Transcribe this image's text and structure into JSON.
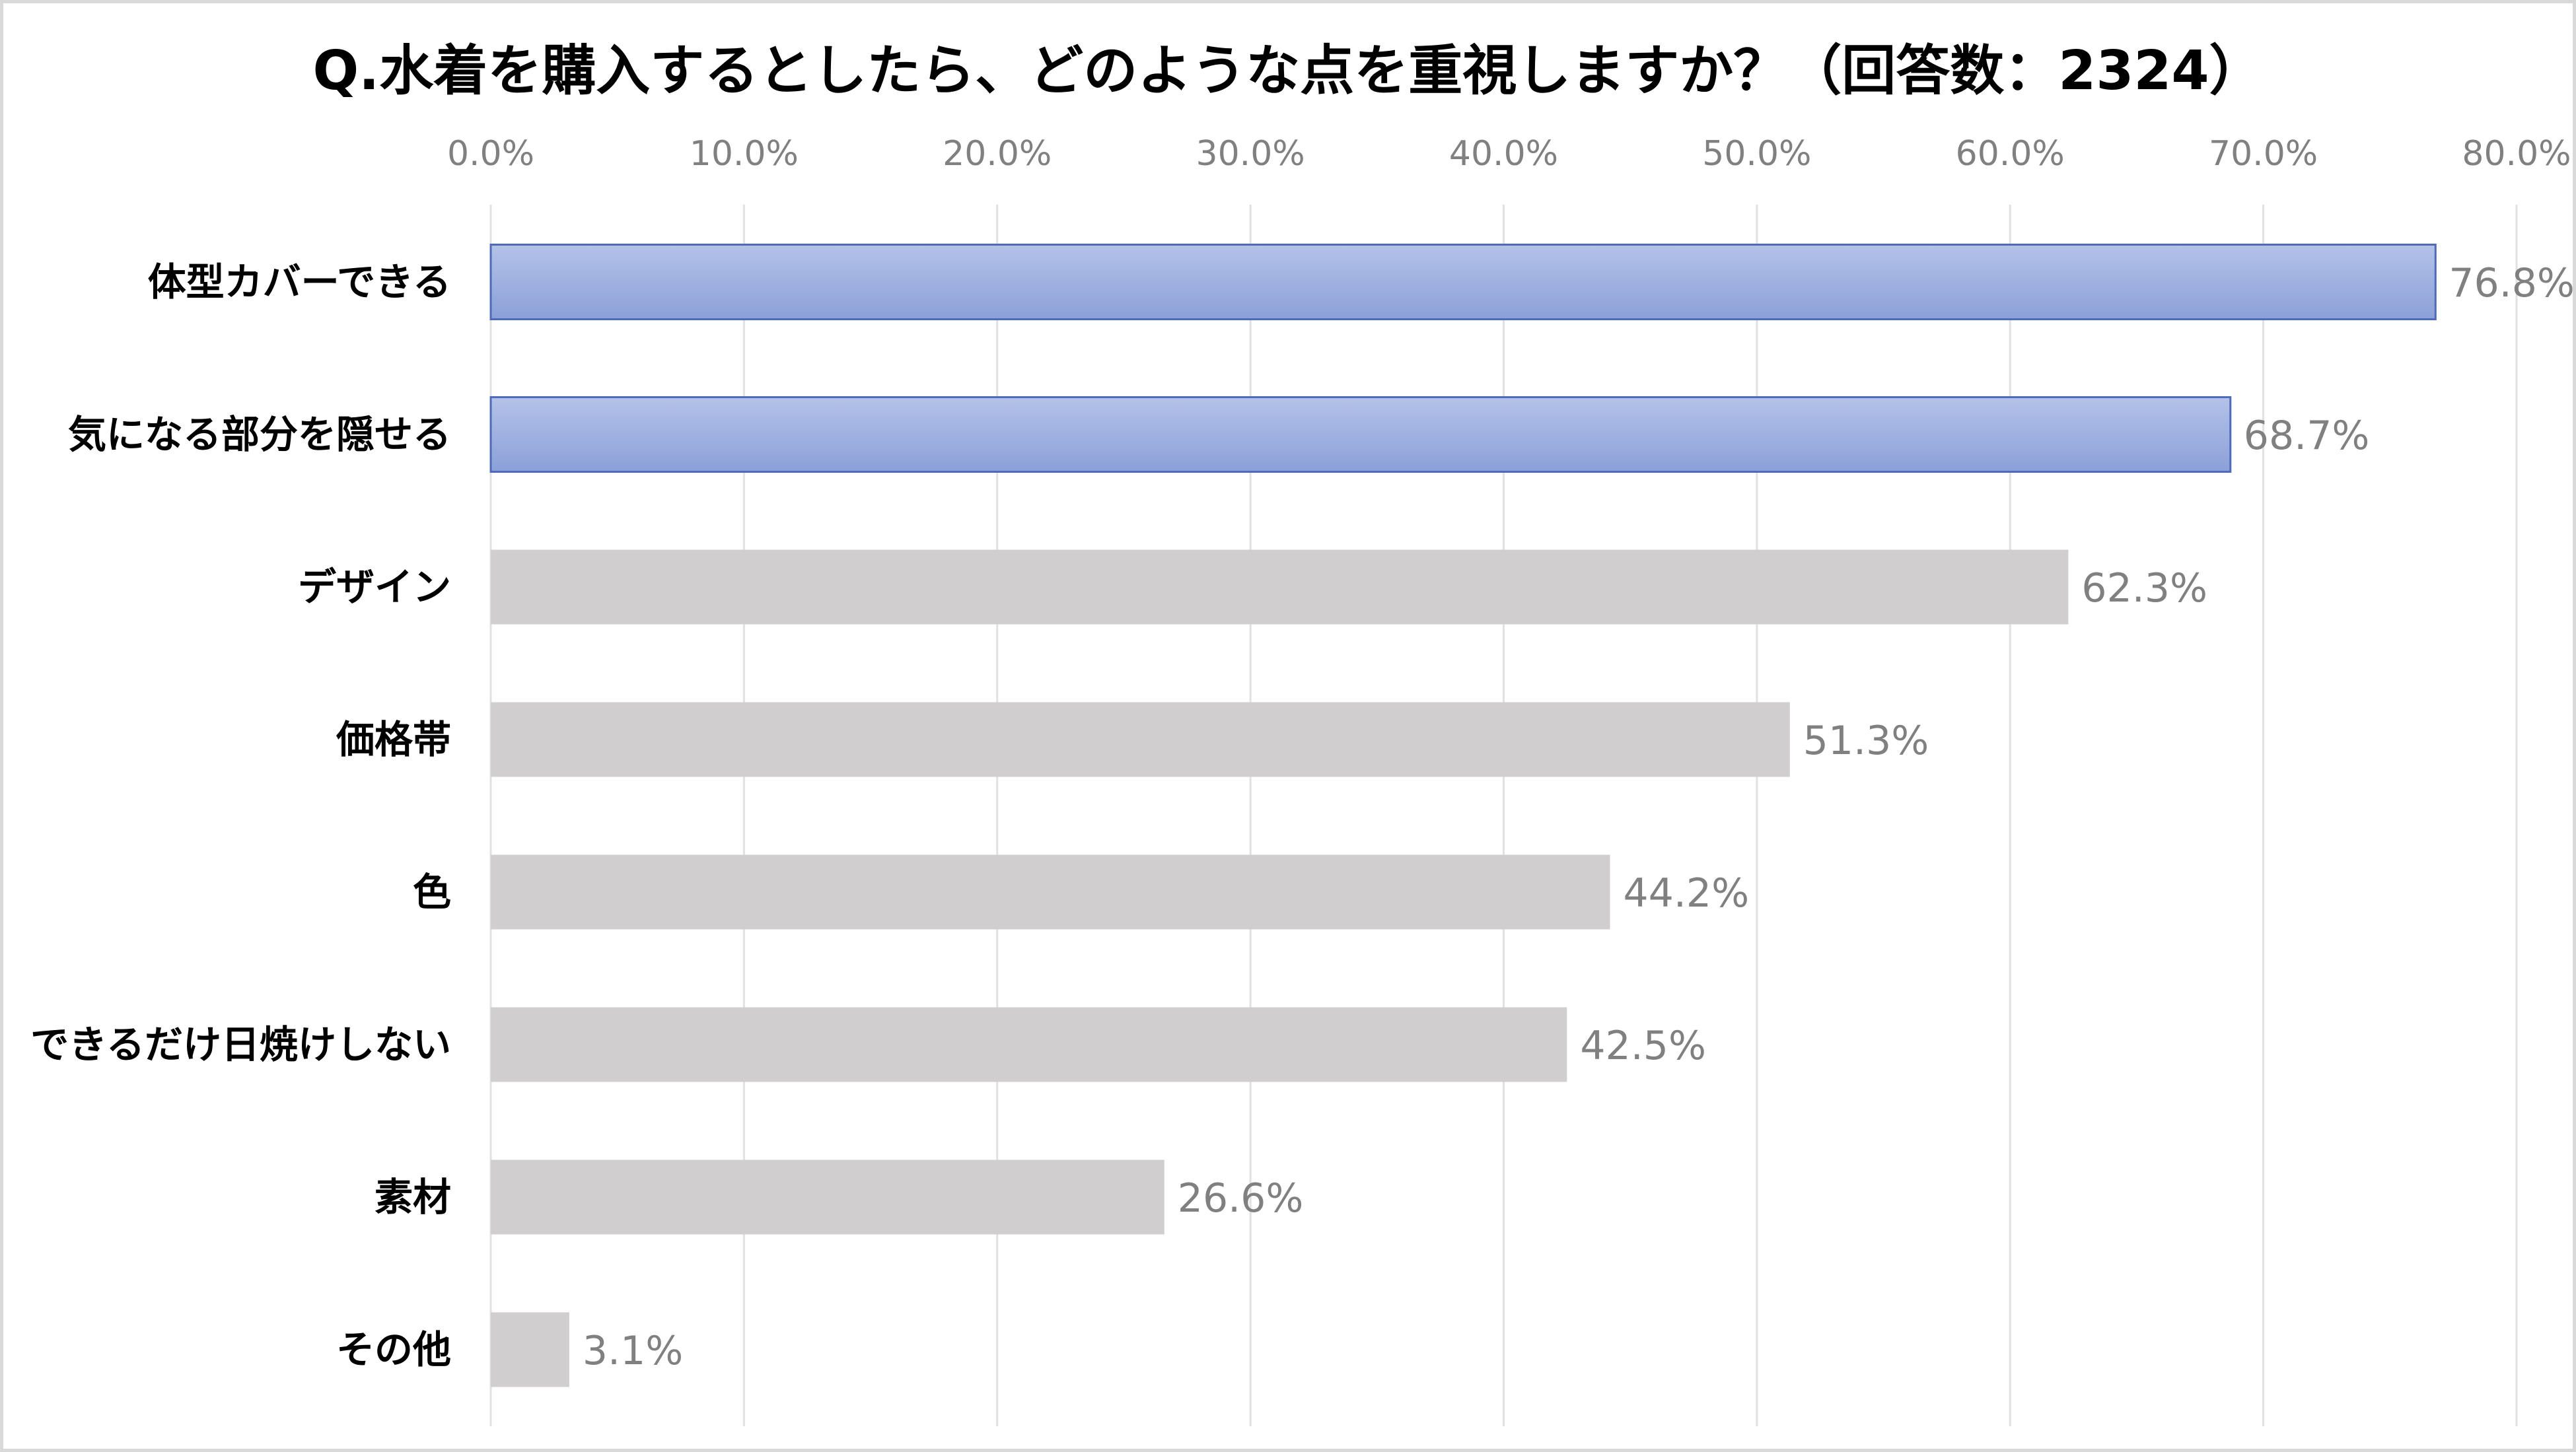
{
  "chart_data": {
    "type": "bar",
    "orientation": "horizontal",
    "title": "Q.水着を購入するとしたら、どのような点を重視しますか？（回答数：2324）",
    "categories": [
      "体型カバーできる",
      "気になる部分を隠せる",
      "デザイン",
      "価格帯",
      "色",
      "できるだけ日焼けしない",
      "素材",
      "その他"
    ],
    "values": [
      76.8,
      68.7,
      62.3,
      51.3,
      44.2,
      42.5,
      26.6,
      3.1
    ],
    "value_labels": [
      "76.8%",
      "68.7%",
      "62.3%",
      "51.3%",
      "44.2%",
      "42.5%",
      "26.6%",
      "3.1%"
    ],
    "highlighted": [
      true,
      true,
      false,
      false,
      false,
      false,
      false,
      false
    ],
    "xlim": [
      0,
      80
    ],
    "x_ticks": [
      0,
      10,
      20,
      30,
      40,
      50,
      60,
      70,
      80
    ],
    "x_tick_labels": [
      "0.0%",
      "10.0%",
      "20.0%",
      "30.0%",
      "40.0%",
      "50.0%",
      "60.0%",
      "70.0%",
      "80.0%"
    ],
    "x_axis_position": "top",
    "grid": true,
    "legend": "none",
    "colors": {
      "highlight_top": "#b4c2e8",
      "highlight_bottom": "#8ba0d9",
      "highlight_border": "#4f6ab8",
      "normal": "#d0cece",
      "grid": "#e1e1e1",
      "axis_text": "#808080",
      "category_text": "#000000"
    }
  }
}
